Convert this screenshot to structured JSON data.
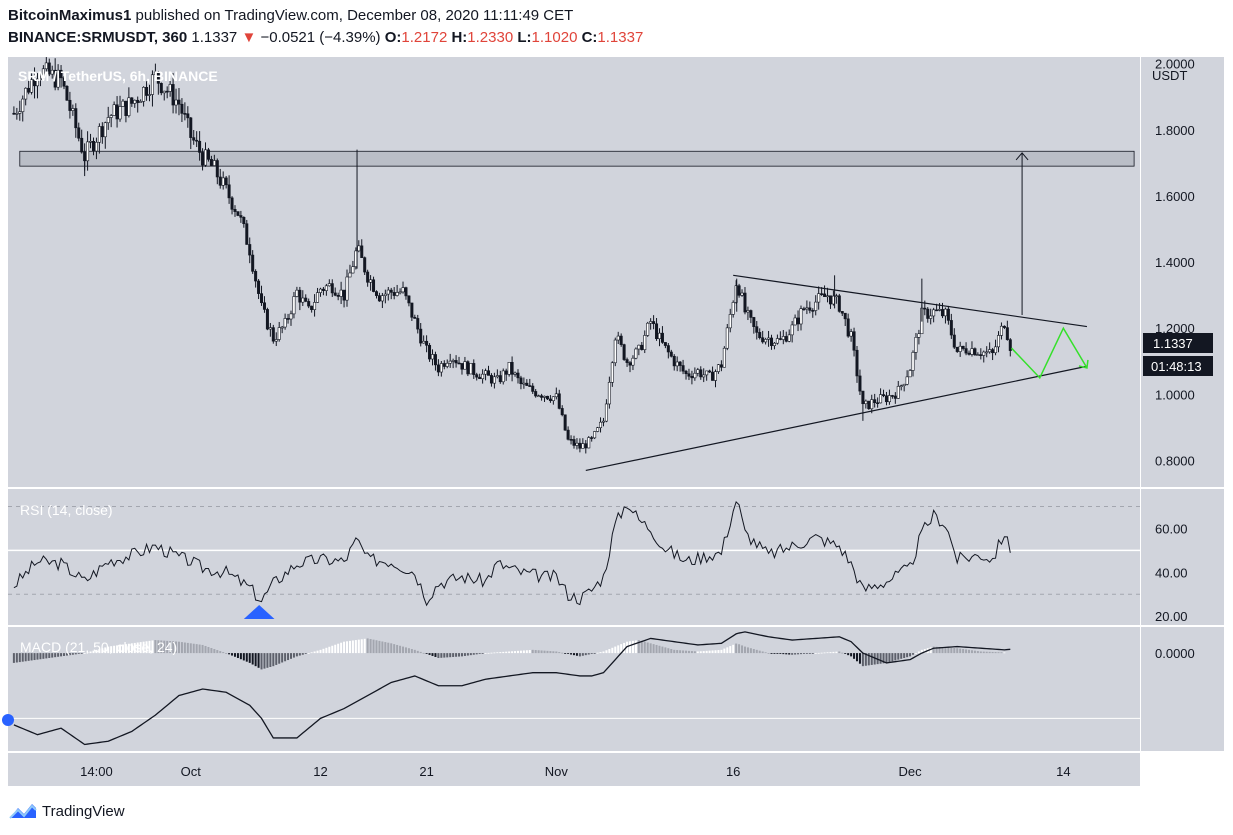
{
  "header": {
    "author": "BitcoinMaximus1",
    "published_text": " published on TradingView.com, December 08, 2020 11:11:49 CET",
    "symbol": "BINANCE:SRMUSDT, 360",
    "last": "1.1337",
    "change_arrow": "▼",
    "change": "−0.0521 (−4.39%)",
    "o_label": "O:",
    "o": "1.2172",
    "h_label": "H:",
    "h": "1.2330",
    "l_label": "L:",
    "l": "1.1020",
    "c_label": "C:",
    "c": "1.1337"
  },
  "footer": {
    "brand": "TradingView",
    "logo_icon": "tradingview-logo-icon"
  },
  "colors": {
    "pane_bg": "#d1d4dc",
    "candle": "#131722",
    "projection": "#35e02b",
    "rsi_marker": "#2962ff"
  },
  "chart_data": [
    {
      "type": "candlestick",
      "title": "SRM / TetherUS, 6h, BINANCE",
      "ylabel": "USDT",
      "ylim": [
        0.72,
        2.02
      ],
      "y_ticks": [
        "2.0000",
        "1.8000",
        "1.6000",
        "1.4000",
        "1.2000",
        "1.0000",
        "0.8000"
      ],
      "y_tick_values": [
        2.0,
        1.8,
        1.6,
        1.4,
        1.2,
        1.0,
        0.8
      ],
      "x_ticks": [
        "14:00",
        "Oct",
        "12",
        "21",
        "Nov",
        "16",
        "Dec",
        "14"
      ],
      "x_tick_days": [
        -19,
        -11,
        0,
        9,
        20,
        35,
        50,
        63
      ],
      "x_range_days": [
        -26.5,
        69.5
      ],
      "x_axis_origin": "October 12, 2020",
      "price_label": "1.1337",
      "countdown_label": "01:48:13",
      "price_anchors": [
        [
          -26,
          1.85
        ],
        [
          -24,
          1.98
        ],
        [
          -22,
          1.95
        ],
        [
          -20,
          1.72
        ],
        [
          -18,
          1.84
        ],
        [
          -16,
          1.88
        ],
        [
          -14,
          1.96
        ],
        [
          -12,
          1.88
        ],
        [
          -11,
          1.78
        ],
        [
          -10,
          1.72
        ],
        [
          -9,
          1.68
        ],
        [
          -7,
          1.55
        ],
        [
          -6,
          1.44
        ],
        [
          -5,
          1.26
        ],
        [
          -4,
          1.17
        ],
        [
          -3,
          1.21
        ],
        [
          -2,
          1.31
        ],
        [
          -1,
          1.25
        ],
        [
          0,
          1.32
        ],
        [
          1,
          1.33
        ],
        [
          2,
          1.3
        ],
        [
          3.1,
          1.44
        ],
        [
          4,
          1.36
        ],
        [
          5,
          1.3
        ],
        [
          6,
          1.31
        ],
        [
          7,
          1.31
        ],
        [
          8,
          1.22
        ],
        [
          9,
          1.13
        ],
        [
          10,
          1.08
        ],
        [
          11,
          1.12
        ],
        [
          12,
          1.09
        ],
        [
          13,
          1.07
        ],
        [
          15,
          1.04
        ],
        [
          16,
          1.08
        ],
        [
          17,
          1.03
        ],
        [
          18,
          1.01
        ],
        [
          19,
          1.0
        ],
        [
          20,
          0.99
        ],
        [
          21,
          0.86
        ],
        [
          22,
          0.84
        ],
        [
          23,
          0.86
        ],
        [
          24,
          0.92
        ],
        [
          25,
          1.18
        ],
        [
          26,
          1.1
        ],
        [
          27,
          1.13
        ],
        [
          28,
          1.22
        ],
        [
          29,
          1.15
        ],
        [
          30,
          1.1
        ],
        [
          31,
          1.06
        ],
        [
          32,
          1.07
        ],
        [
          33,
          1.05
        ],
        [
          34,
          1.09
        ],
        [
          35.3,
          1.35
        ],
        [
          36,
          1.25
        ],
        [
          37,
          1.18
        ],
        [
          38,
          1.17
        ],
        [
          39,
          1.16
        ],
        [
          40,
          1.2
        ],
        [
          41,
          1.26
        ],
        [
          42,
          1.28
        ],
        [
          43,
          1.3
        ],
        [
          44,
          1.27
        ],
        [
          45,
          1.17
        ],
        [
          46,
          0.96
        ],
        [
          47,
          0.98
        ],
        [
          48,
          0.99
        ],
        [
          49,
          1.01
        ],
        [
          50,
          1.08
        ],
        [
          51,
          1.24
        ],
        [
          52,
          1.25
        ],
        [
          53,
          1.24
        ],
        [
          54,
          1.13
        ],
        [
          55,
          1.14
        ],
        [
          56,
          1.13
        ],
        [
          57,
          1.12
        ],
        [
          58,
          1.22
        ],
        [
          58.6,
          1.1337
        ]
      ],
      "annotations": {
        "resistance_zone": [
          1.69,
          1.735
        ],
        "upper_trendline": [
          [
            35,
            1.36
          ],
          [
            65,
            1.205
          ]
        ],
        "lower_trendline": [
          [
            22.5,
            0.77
          ],
          [
            65,
            1.085
          ]
        ],
        "target_arrow": [
          [
            59.5,
            1.24
          ],
          [
            59.5,
            1.73
          ]
        ],
        "projection": [
          [
            58.6,
            1.14
          ],
          [
            61,
            1.05
          ],
          [
            63,
            1.2
          ],
          [
            65,
            1.08
          ]
        ]
      }
    },
    {
      "type": "line",
      "title": "RSI (14, close)",
      "y_ticks": [
        "60.00",
        "40.00",
        "20.00"
      ],
      "y_tick_values": [
        60,
        40,
        20
      ],
      "ylim": [
        16,
        78
      ],
      "bands": [
        30,
        70
      ],
      "midline": 50,
      "values": [
        [
          -26,
          34
        ],
        [
          -24,
          45
        ],
        [
          -22,
          44
        ],
        [
          -20,
          36
        ],
        [
          -18,
          45
        ],
        [
          -16,
          48
        ],
        [
          -14,
          52
        ],
        [
          -12,
          47
        ],
        [
          -11,
          45
        ],
        [
          -10,
          42
        ],
        [
          -8,
          40
        ],
        [
          -6,
          33
        ],
        [
          -5,
          27
        ],
        [
          -4,
          35
        ],
        [
          -2,
          44
        ],
        [
          0,
          46
        ],
        [
          2,
          45
        ],
        [
          3.1,
          55
        ],
        [
          4,
          46
        ],
        [
          6,
          45
        ],
        [
          8,
          40
        ],
        [
          9,
          28
        ],
        [
          10,
          35
        ],
        [
          12,
          38
        ],
        [
          14,
          36
        ],
        [
          15,
          44
        ],
        [
          17,
          40
        ],
        [
          19,
          38
        ],
        [
          20,
          38
        ],
        [
          21,
          30
        ],
        [
          22,
          28
        ],
        [
          23,
          32
        ],
        [
          24,
          38
        ],
        [
          25,
          62
        ],
        [
          26,
          72
        ],
        [
          27,
          64
        ],
        [
          28,
          60
        ],
        [
          29,
          52
        ],
        [
          31,
          45
        ],
        [
          33,
          48
        ],
        [
          34,
          49
        ],
        [
          35.3,
          74
        ],
        [
          36,
          58
        ],
        [
          38,
          48
        ],
        [
          40,
          52
        ],
        [
          42,
          56
        ],
        [
          44,
          52
        ],
        [
          45,
          44
        ],
        [
          46,
          32
        ],
        [
          48,
          36
        ],
        [
          50,
          42
        ],
        [
          51,
          58
        ],
        [
          52,
          66
        ],
        [
          53,
          62
        ],
        [
          54,
          46
        ],
        [
          56,
          48
        ],
        [
          57,
          46
        ],
        [
          58,
          58
        ],
        [
          58.6,
          48
        ]
      ]
    },
    {
      "type": "line+bar",
      "title": "MACD (21, 50, close, 24)",
      "y_ticks": [
        "0.0000"
      ],
      "y_tick_values": [
        0
      ],
      "ylim": [
        -0.3,
        0.08
      ],
      "macd": [
        [
          -26,
          -0.22
        ],
        [
          -24,
          -0.25
        ],
        [
          -22,
          -0.23
        ],
        [
          -20,
          -0.28
        ],
        [
          -18,
          -0.27
        ],
        [
          -16,
          -0.24
        ],
        [
          -14,
          -0.19
        ],
        [
          -12,
          -0.13
        ],
        [
          -10,
          -0.11
        ],
        [
          -8,
          -0.12
        ],
        [
          -6,
          -0.16
        ],
        [
          -5,
          -0.2
        ],
        [
          -4,
          -0.26
        ],
        [
          -2,
          -0.26
        ],
        [
          0,
          -0.2
        ],
        [
          2,
          -0.17
        ],
        [
          4,
          -0.13
        ],
        [
          6,
          -0.09
        ],
        [
          8,
          -0.07
        ],
        [
          10,
          -0.1
        ],
        [
          12,
          -0.1
        ],
        [
          14,
          -0.08
        ],
        [
          16,
          -0.07
        ],
        [
          18,
          -0.06
        ],
        [
          20,
          -0.06
        ],
        [
          22,
          -0.07
        ],
        [
          23,
          -0.07
        ],
        [
          24,
          -0.06
        ],
        [
          25,
          -0.02
        ],
        [
          26,
          0.02
        ],
        [
          28,
          0.045
        ],
        [
          30,
          0.035
        ],
        [
          32,
          0.025
        ],
        [
          34,
          0.03
        ],
        [
          35.3,
          0.06
        ],
        [
          36,
          0.065
        ],
        [
          38,
          0.05
        ],
        [
          40,
          0.04
        ],
        [
          42,
          0.045
        ],
        [
          44,
          0.05
        ],
        [
          45,
          0.035
        ],
        [
          46,
          0.0
        ],
        [
          48,
          -0.03
        ],
        [
          50,
          -0.02
        ],
        [
          51,
          0.0
        ],
        [
          52,
          0.015
        ],
        [
          54,
          0.02
        ],
        [
          56,
          0.015
        ],
        [
          58,
          0.01
        ],
        [
          58.6,
          0.012
        ]
      ],
      "histogram": [
        [
          -26,
          -0.03
        ],
        [
          -24,
          -0.02
        ],
        [
          -22,
          -0.01
        ],
        [
          -20,
          0.0
        ],
        [
          -18,
          0.02
        ],
        [
          -16,
          0.03
        ],
        [
          -14,
          0.04
        ],
        [
          -12,
          0.035
        ],
        [
          -11,
          0.03
        ],
        [
          -10,
          0.025
        ],
        [
          -8,
          0.0
        ],
        [
          -6,
          -0.03
        ],
        [
          -5,
          -0.05
        ],
        [
          -4,
          -0.04
        ],
        [
          -2,
          -0.01
        ],
        [
          0,
          0.01
        ],
        [
          2,
          0.035
        ],
        [
          4,
          0.045
        ],
        [
          6,
          0.03
        ],
        [
          8,
          0.01
        ],
        [
          10,
          -0.015
        ],
        [
          12,
          -0.01
        ],
        [
          14,
          0.0
        ],
        [
          16,
          0.005
        ],
        [
          18,
          0.01
        ],
        [
          20,
          0.005
        ],
        [
          22,
          -0.01
        ],
        [
          24,
          0.005
        ],
        [
          25,
          0.02
        ],
        [
          26,
          0.035
        ],
        [
          27,
          0.04
        ],
        [
          28,
          0.03
        ],
        [
          30,
          0.01
        ],
        [
          32,
          0.005
        ],
        [
          34,
          0.01
        ],
        [
          35.3,
          0.03
        ],
        [
          36,
          0.02
        ],
        [
          38,
          0.0
        ],
        [
          40,
          -0.005
        ],
        [
          42,
          0.0
        ],
        [
          44,
          0.005
        ],
        [
          45,
          -0.01
        ],
        [
          46,
          -0.04
        ],
        [
          48,
          -0.03
        ],
        [
          50,
          -0.01
        ],
        [
          51,
          0.01
        ],
        [
          52,
          0.02
        ],
        [
          54,
          0.015
        ],
        [
          56,
          0.005
        ],
        [
          58,
          0.002
        ]
      ]
    }
  ]
}
